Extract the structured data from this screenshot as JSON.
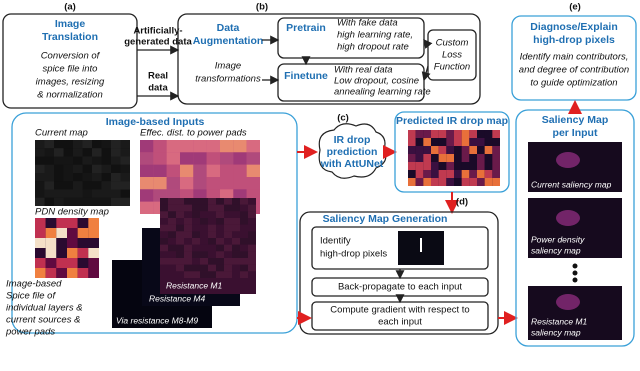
{
  "image_translation": {
    "label": "(a)",
    "title": [
      "Image",
      "Translation"
    ],
    "description": [
      "Conversion of",
      "spice file into",
      "images, resizing",
      "& normalization"
    ]
  },
  "flows": {
    "artificial": [
      "Artificially-",
      "generated data"
    ],
    "real": [
      "Real",
      "data"
    ]
  },
  "training": {
    "label": "(b)",
    "augmentation_title": [
      "Data",
      "Augmentation"
    ],
    "augmentation_text": [
      "Image",
      "transformations"
    ],
    "pretrain": {
      "title": "Pretrain",
      "text": [
        "With fake data",
        "high learning rate,",
        "high dropout rate"
      ]
    },
    "finetune": {
      "title": "Finetune",
      "text": [
        "With real data",
        "Low dropout, cosine",
        "annealing learning rate"
      ]
    },
    "loss": [
      "Custom",
      "Loss",
      "Function"
    ]
  },
  "diagnose": {
    "label": "(e)",
    "title": [
      "Diagnose/Explain",
      "high-drop pixels"
    ],
    "text": [
      "Identify main contributors,",
      "and degree of contribution",
      "to guide optimization"
    ]
  },
  "inputs": {
    "title": "Image-based Inputs",
    "current": "Current map",
    "distance": "Effec. dist. to power pads",
    "pdn": "PDN density map",
    "m1": "Resistance M1",
    "m4": "Resistance M4",
    "via": "Via resistance M8-M9",
    "spice": [
      "Image-based",
      "Spice file of",
      "individual layers &",
      "current sources &",
      "power pads"
    ]
  },
  "prediction": {
    "label": "(c)",
    "text": [
      "IR drop",
      "prediction",
      "with AttUNet"
    ],
    "map_title": "Predicted IR drop map"
  },
  "saliency_generation": {
    "label": "(d)",
    "title": "Saliency Map Generation",
    "step1": [
      "Identify",
      "high-drop pixels"
    ],
    "step2": "Back-propagate to each input",
    "step3": [
      "Compute gradient with respect to",
      "each input"
    ]
  },
  "saliency_per_input": {
    "title": [
      "Saliency Map",
      "per Input"
    ],
    "current": "Current saliency map",
    "power": [
      "Power density",
      "saliency map"
    ],
    "m1": [
      "Resistance M1",
      "saliency map"
    ]
  }
}
